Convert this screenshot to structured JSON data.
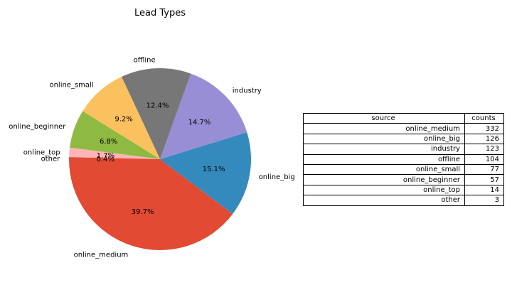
{
  "chart_data": {
    "type": "pie",
    "title": "Lead Types",
    "categories": [
      "online_medium",
      "online_big",
      "industry",
      "offline",
      "online_small",
      "online_beginner",
      "online_top",
      "other"
    ],
    "values": [
      332,
      126,
      123,
      104,
      77,
      57,
      14,
      3
    ],
    "percent_labels": [
      "39.7%",
      "15.1%",
      "14.7%",
      "12.4%",
      "9.2%",
      "6.8%",
      "1.7%",
      "0.4%"
    ],
    "colors": [
      "#E24A33",
      "#348ABD",
      "#988ED5",
      "#777777",
      "#FBC15E",
      "#8EBA42",
      "#FFB5B8",
      "#E24A33"
    ],
    "table": {
      "columns": [
        "source",
        "counts"
      ],
      "rows": [
        [
          "online_medium",
          "332"
        ],
        [
          "online_big",
          "126"
        ],
        [
          "industry",
          "123"
        ],
        [
          "offline",
          "104"
        ],
        [
          "online_small",
          "77"
        ],
        [
          "online_beginner",
          "57"
        ],
        [
          "online_top",
          "14"
        ],
        [
          "other",
          "3"
        ]
      ]
    }
  }
}
